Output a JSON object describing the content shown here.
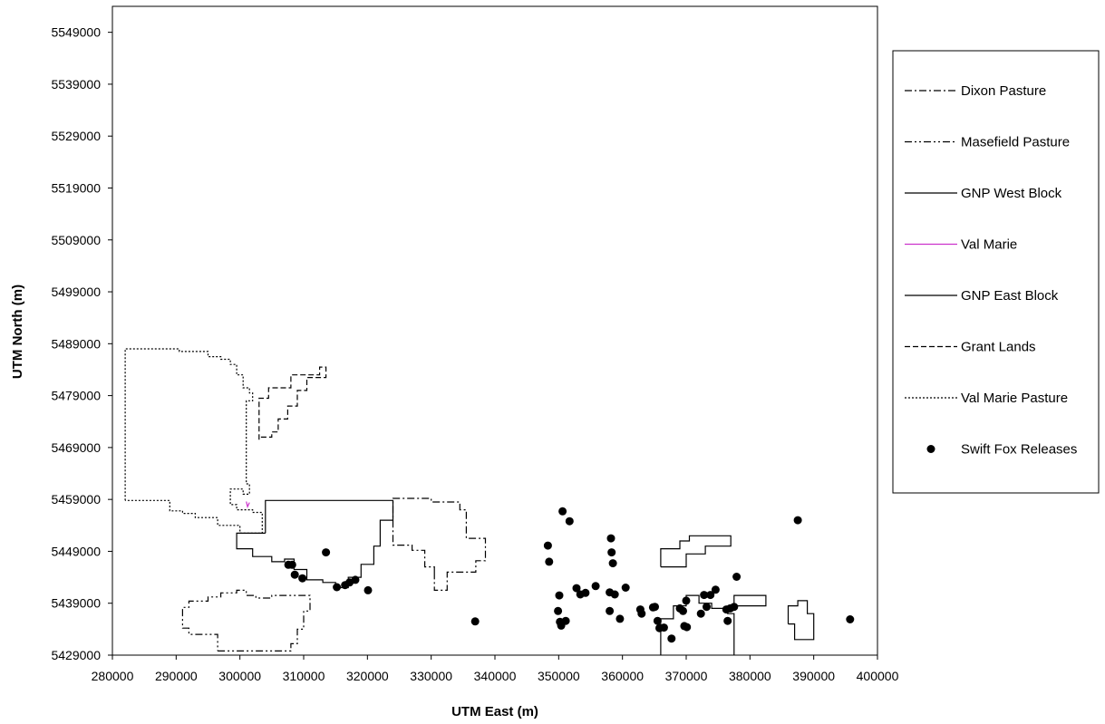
{
  "chart_data": {
    "type": "scatter",
    "xlabel": "UTM East (m)",
    "ylabel": "UTM North (m)",
    "xlim": [
      280000,
      400000
    ],
    "ylim": [
      5429000,
      5554000
    ],
    "x_ticks": [
      "280000",
      "290000",
      "300000",
      "310000",
      "320000",
      "330000",
      "340000",
      "350000",
      "360000",
      "370000",
      "380000",
      "390000",
      "400000"
    ],
    "y_ticks": [
      "5429000",
      "5439000",
      "5449000",
      "5459000",
      "5469000",
      "5479000",
      "5489000",
      "5499000",
      "5509000",
      "5519000",
      "5529000",
      "5539000",
      "5549000"
    ],
    "grid": false,
    "legend_position": "right",
    "series": [
      {
        "name": "Dixon Pasture",
        "kind": "line",
        "dash": "dashdot",
        "color": "#000000",
        "polylines": [
          [
            [
              330500,
              5445000
            ],
            [
              330500,
              5441500
            ],
            [
              332500,
              5441500
            ],
            [
              332500,
              5445000
            ],
            [
              337000,
              5445000
            ],
            [
              337000,
              5447200
            ],
            [
              338500,
              5447200
            ],
            [
              338500,
              5451500
            ],
            [
              335500,
              5451500
            ],
            [
              335500,
              5457000
            ],
            [
              334500,
              5457000
            ],
            [
              334500,
              5458500
            ],
            [
              330000,
              5458500
            ],
            [
              330000,
              5459200
            ],
            [
              324000,
              5459200
            ],
            [
              324000,
              5450200
            ],
            [
              327000,
              5450200
            ],
            [
              327000,
              5449200
            ],
            [
              329000,
              5449200
            ],
            [
              329000,
              5446000
            ],
            [
              330500,
              5446000
            ],
            [
              330500,
              5445000
            ]
          ]
        ]
      },
      {
        "name": "Masefield Pasture",
        "kind": "line",
        "dash": "dashdotdot",
        "color": "#000000",
        "polylines": [
          [
            [
              296500,
              5429800
            ],
            [
              308000,
              5429800
            ],
            [
              308000,
              5431200
            ],
            [
              309000,
              5431200
            ],
            [
              309000,
              5434000
            ],
            [
              310000,
              5434000
            ],
            [
              310000,
              5437500
            ],
            [
              311000,
              5437500
            ],
            [
              311000,
              5440500
            ],
            [
              305000,
              5440500
            ],
            [
              305000,
              5440000
            ],
            [
              302500,
              5440000
            ],
            [
              302500,
              5440500
            ],
            [
              301000,
              5440500
            ],
            [
              301000,
              5441500
            ],
            [
              299500,
              5441500
            ],
            [
              299500,
              5441000
            ],
            [
              297000,
              5441000
            ],
            [
              297000,
              5440200
            ],
            [
              295000,
              5440200
            ],
            [
              295000,
              5439400
            ],
            [
              292000,
              5439400
            ],
            [
              292000,
              5438200
            ],
            [
              291000,
              5438200
            ],
            [
              291000,
              5434200
            ],
            [
              292000,
              5434200
            ],
            [
              292000,
              5433000
            ],
            [
              296500,
              5433000
            ],
            [
              296500,
              5429800
            ]
          ]
        ]
      },
      {
        "name": "GNP West Block",
        "kind": "line",
        "dash": "solid",
        "color": "#000000",
        "polylines": [
          [
            [
              304000,
              5452500
            ],
            [
              304000,
              5458800
            ],
            [
              324000,
              5458800
            ],
            [
              324000,
              5455000
            ],
            [
              322000,
              5455000
            ],
            [
              322000,
              5450000
            ],
            [
              321000,
              5450000
            ],
            [
              321000,
              5446500
            ],
            [
              319000,
              5446500
            ],
            [
              319000,
              5444000
            ],
            [
              317000,
              5444000
            ],
            [
              317000,
              5442000
            ],
            [
              315000,
              5442000
            ],
            [
              315000,
              5443000
            ],
            [
              313000,
              5443000
            ],
            [
              313000,
              5443500
            ],
            [
              310500,
              5443500
            ],
            [
              310500,
              5445500
            ],
            [
              308500,
              5445500
            ],
            [
              308500,
              5447500
            ],
            [
              307000,
              5447500
            ],
            [
              307000,
              5447000
            ],
            [
              305000,
              5447000
            ],
            [
              305000,
              5448000
            ],
            [
              302000,
              5448000
            ],
            [
              302000,
              5449500
            ],
            [
              299500,
              5449500
            ],
            [
              299500,
              5452500
            ],
            [
              304000,
              5452500
            ]
          ]
        ]
      },
      {
        "name": "Val Marie",
        "kind": "line",
        "dash": "solid",
        "color": "#cc33cc",
        "polylines": [
          [
            [
              301000,
              5458600
            ],
            [
              301200,
              5457600
            ],
            [
              301500,
              5458400
            ]
          ]
        ]
      },
      {
        "name": "GNP East Block",
        "kind": "line",
        "dash": "solid",
        "color": "#000000",
        "polylines": [
          [
            [
              366000,
              5429000
            ],
            [
              366000,
              5436000
            ],
            [
              368000,
              5436000
            ],
            [
              368000,
              5438500
            ],
            [
              370000,
              5438500
            ],
            [
              370000,
              5440500
            ],
            [
              372000,
              5440500
            ],
            [
              372000,
              5439000
            ],
            [
              374000,
              5439000
            ],
            [
              374000,
              5438000
            ],
            [
              376500,
              5438000
            ],
            [
              376500,
              5437000
            ],
            [
              377500,
              5437000
            ],
            [
              377500,
              5429000
            ]
          ],
          [
            [
              366000,
              5446000
            ],
            [
              370000,
              5446000
            ],
            [
              370000,
              5448500
            ],
            [
              373000,
              5448500
            ],
            [
              373000,
              5450000
            ],
            [
              377000,
              5450000
            ],
            [
              377000,
              5452000
            ],
            [
              370500,
              5452000
            ],
            [
              370500,
              5451000
            ],
            [
              369000,
              5451000
            ],
            [
              369000,
              5449500
            ],
            [
              366000,
              5449500
            ],
            [
              366000,
              5446000
            ]
          ],
          [
            [
              377500,
              5438500
            ],
            [
              382500,
              5438500
            ],
            [
              382500,
              5440500
            ],
            [
              377500,
              5440500
            ],
            [
              377500,
              5438500
            ]
          ],
          [
            [
              386000,
              5435000
            ],
            [
              387000,
              5435000
            ],
            [
              387000,
              5432000
            ],
            [
              390000,
              5432000
            ],
            [
              390000,
              5437000
            ],
            [
              389000,
              5437000
            ],
            [
              389000,
              5439500
            ],
            [
              387500,
              5439500
            ],
            [
              387500,
              5438500
            ],
            [
              386000,
              5438500
            ],
            [
              386000,
              5435000
            ]
          ]
        ]
      },
      {
        "name": "Grant Lands",
        "kind": "line",
        "dash": "dash",
        "color": "#000000",
        "polylines": [
          [
            [
              303000,
              5470500
            ],
            [
              303000,
              5478500
            ],
            [
              304500,
              5478500
            ],
            [
              304500,
              5480500
            ],
            [
              308000,
              5480500
            ],
            [
              308000,
              5483000
            ],
            [
              312500,
              5483000
            ],
            [
              312500,
              5484500
            ],
            [
              313500,
              5484500
            ],
            [
              313500,
              5482500
            ],
            [
              310500,
              5482500
            ],
            [
              310500,
              5480000
            ],
            [
              309000,
              5480000
            ],
            [
              309000,
              5477000
            ],
            [
              307500,
              5477000
            ],
            [
              307500,
              5474500
            ],
            [
              306000,
              5474500
            ],
            [
              306000,
              5472000
            ],
            [
              305000,
              5472000
            ],
            [
              305000,
              5471000
            ],
            [
              303000,
              5471000
            ],
            [
              303000,
              5470500
            ]
          ]
        ]
      },
      {
        "name": "Val Marie Pasture",
        "kind": "line",
        "dash": "dot",
        "color": "#000000",
        "polylines": [
          [
            [
              282000,
              5458800
            ],
            [
              282000,
              5488000
            ],
            [
              290500,
              5488000
            ],
            [
              290500,
              5487500
            ],
            [
              295000,
              5487500
            ],
            [
              295000,
              5486500
            ],
            [
              297000,
              5486500
            ],
            [
              297000,
              5486000
            ],
            [
              298500,
              5486000
            ],
            [
              298500,
              5485000
            ],
            [
              299500,
              5485000
            ],
            [
              299500,
              5483000
            ],
            [
              300500,
              5483000
            ],
            [
              300500,
              5480500
            ],
            [
              301500,
              5480500
            ],
            [
              301500,
              5479500
            ],
            [
              302000,
              5479500
            ],
            [
              302000,
              5478000
            ],
            [
              301000,
              5478000
            ],
            [
              301000,
              5462000
            ],
            [
              301500,
              5462000
            ],
            [
              301500,
              5460000
            ],
            [
              300500,
              5460000
            ],
            [
              300500,
              5461000
            ],
            [
              298500,
              5461000
            ],
            [
              298500,
              5458000
            ],
            [
              299500,
              5458000
            ],
            [
              299500,
              5457000
            ],
            [
              302000,
              5457000
            ],
            [
              302000,
              5456500
            ],
            [
              303500,
              5456500
            ],
            [
              303500,
              5452500
            ],
            [
              300000,
              5452500
            ],
            [
              300000,
              5454000
            ],
            [
              296500,
              5454000
            ],
            [
              296500,
              5455500
            ],
            [
              293000,
              5455500
            ],
            [
              293000,
              5456300
            ],
            [
              291000,
              5456300
            ],
            [
              291000,
              5456800
            ],
            [
              289000,
              5456800
            ],
            [
              289000,
              5458800
            ],
            [
              282000,
              5458800
            ]
          ]
        ]
      },
      {
        "name": "Swift Fox Releases",
        "kind": "points",
        "color": "#000000",
        "points": [
          [
            307600,
            5446400
          ],
          [
            308200,
            5446400
          ],
          [
            308600,
            5444500
          ],
          [
            309800,
            5443800
          ],
          [
            313500,
            5448800
          ],
          [
            315200,
            5442100
          ],
          [
            316500,
            5442500
          ],
          [
            317200,
            5443000
          ],
          [
            318100,
            5443500
          ],
          [
            320100,
            5441500
          ],
          [
            336900,
            5435500
          ],
          [
            348300,
            5450100
          ],
          [
            348500,
            5447000
          ],
          [
            349900,
            5437500
          ],
          [
            350100,
            5440500
          ],
          [
            350200,
            5435400
          ],
          [
            350400,
            5434700
          ],
          [
            350600,
            5456700
          ],
          [
            351100,
            5435600
          ],
          [
            351700,
            5454800
          ],
          [
            352800,
            5441900
          ],
          [
            353400,
            5440700
          ],
          [
            354200,
            5441000
          ],
          [
            355800,
            5442300
          ],
          [
            358000,
            5441100
          ],
          [
            358000,
            5437500
          ],
          [
            358200,
            5451500
          ],
          [
            358300,
            5448800
          ],
          [
            358500,
            5446700
          ],
          [
            358800,
            5440700
          ],
          [
            359600,
            5436000
          ],
          [
            360500,
            5442000
          ],
          [
            362800,
            5437800
          ],
          [
            363000,
            5437000
          ],
          [
            364800,
            5438200
          ],
          [
            365100,
            5438300
          ],
          [
            365500,
            5435600
          ],
          [
            365800,
            5434200
          ],
          [
            366500,
            5434300
          ],
          [
            367700,
            5432200
          ],
          [
            369000,
            5438000
          ],
          [
            369500,
            5437500
          ],
          [
            369700,
            5434600
          ],
          [
            370000,
            5439500
          ],
          [
            370100,
            5434400
          ],
          [
            372300,
            5437000
          ],
          [
            372800,
            5440600
          ],
          [
            373200,
            5438300
          ],
          [
            373800,
            5440600
          ],
          [
            374600,
            5441600
          ],
          [
            376300,
            5437800
          ],
          [
            376500,
            5435600
          ],
          [
            376900,
            5438000
          ],
          [
            377500,
            5438300
          ],
          [
            377900,
            5444100
          ],
          [
            387500,
            5455000
          ],
          [
            395700,
            5435900
          ]
        ]
      }
    ]
  }
}
